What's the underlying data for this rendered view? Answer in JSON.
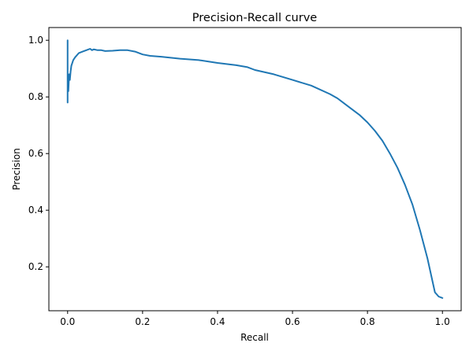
{
  "chart_data": {
    "type": "line",
    "title": "Precision-Recall curve",
    "xlabel": "Recall",
    "ylabel": "Precision",
    "xlim": [
      -0.05,
      1.05
    ],
    "ylim": [
      0.045,
      1.045
    ],
    "x_ticks": [
      0.0,
      0.2,
      0.4,
      0.6,
      0.8,
      1.0
    ],
    "x_tick_labels": [
      "0.0",
      "0.2",
      "0.4",
      "0.6",
      "0.8",
      "1.0"
    ],
    "y_ticks": [
      0.2,
      0.4,
      0.6,
      0.8,
      1.0
    ],
    "y_tick_labels": [
      "0.2",
      "0.4",
      "0.6",
      "0.8",
      "1.0"
    ],
    "grid": false,
    "legend": "none",
    "color": "#1f77b4",
    "series": [
      {
        "x": [
          0.0,
          0.0,
          0.0,
          0.002,
          0.004,
          0.006,
          0.008,
          0.01,
          0.015,
          0.02,
          0.03,
          0.04,
          0.05,
          0.06,
          0.065,
          0.07,
          0.08,
          0.09,
          0.1,
          0.12,
          0.14,
          0.16,
          0.18,
          0.2,
          0.22,
          0.25,
          0.3,
          0.35,
          0.4,
          0.45,
          0.48,
          0.5,
          0.55,
          0.6,
          0.65,
          0.7,
          0.72,
          0.75,
          0.78,
          0.8,
          0.82,
          0.84,
          0.86,
          0.88,
          0.9,
          0.92,
          0.94,
          0.96,
          0.97,
          0.98,
          0.99,
          1.0
        ],
        "y": [
          1.0,
          0.78,
          0.85,
          0.82,
          0.88,
          0.86,
          0.89,
          0.91,
          0.93,
          0.94,
          0.955,
          0.96,
          0.965,
          0.97,
          0.965,
          0.968,
          0.965,
          0.965,
          0.962,
          0.963,
          0.965,
          0.965,
          0.96,
          0.95,
          0.945,
          0.942,
          0.935,
          0.93,
          0.92,
          0.912,
          0.905,
          0.895,
          0.88,
          0.86,
          0.84,
          0.81,
          0.795,
          0.765,
          0.735,
          0.71,
          0.68,
          0.645,
          0.6,
          0.55,
          0.49,
          0.42,
          0.33,
          0.23,
          0.17,
          0.11,
          0.095,
          0.09
        ]
      }
    ]
  }
}
